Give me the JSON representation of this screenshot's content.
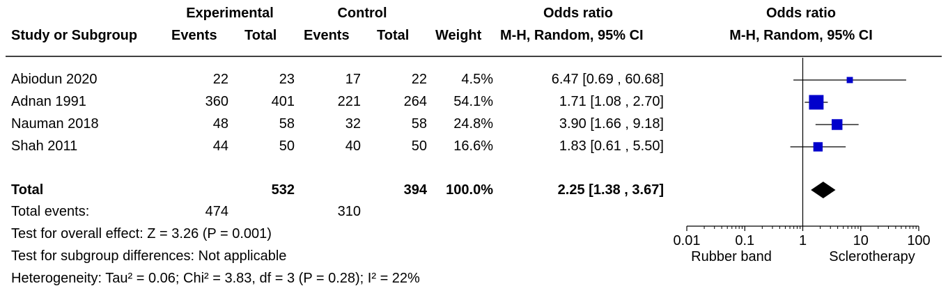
{
  "header": {
    "group1": "Experimental",
    "group2": "Control",
    "or_top": "Odds ratio",
    "or_sub": "M-H, Random, 95% CI",
    "plot_top": "Odds ratio",
    "plot_sub": "M-H, Random, 95% CI",
    "study": "Study or Subgroup",
    "events1": "Events",
    "total1": "Total",
    "events2": "Events",
    "total2": "Total",
    "weight": "Weight"
  },
  "rows": [
    {
      "study": "Abiodun 2020",
      "e1": "22",
      "t1": "23",
      "e2": "17",
      "t2": "22",
      "weight": "4.5%",
      "ci": "6.47 [0.69 , 60.68]"
    },
    {
      "study": "Adnan 1991",
      "e1": "360",
      "t1": "401",
      "e2": "221",
      "t2": "264",
      "weight": "54.1%",
      "ci": "1.71 [1.08 , 2.70]"
    },
    {
      "study": "Nauman 2018",
      "e1": "48",
      "t1": "58",
      "e2": "32",
      "t2": "58",
      "weight": "24.8%",
      "ci": "3.90 [1.66 , 9.18]"
    },
    {
      "study": "Shah 2011",
      "e1": "44",
      "t1": "50",
      "e2": "40",
      "t2": "50",
      "weight": "16.6%",
      "ci": "1.83 [0.61 , 5.50]"
    }
  ],
  "total": {
    "label": "Total",
    "t1": "532",
    "t2": "394",
    "weight": "100.0%",
    "ci": "2.25 [1.38 , 3.67]"
  },
  "total_events": {
    "label": "Total events:",
    "e1": "474",
    "e2": "310"
  },
  "footer": {
    "overall": "Test for overall effect: Z = 3.26 (P = 0.001)",
    "subgroup": "Test for subgroup differences: Not applicable",
    "heterogeneity": "Heterogeneity: Tau² = 0.06; Chi² = 3.83, df = 3 (P = 0.28); I² = 22%"
  },
  "chart_data": {
    "type": "forest",
    "x_scale": "log",
    "xlim": [
      0.01,
      100
    ],
    "ticks": [
      0.01,
      0.1,
      1,
      10,
      100
    ],
    "tick_labels": [
      "0.01",
      "0.1",
      "1",
      "10",
      "100"
    ],
    "left_label": "Rubber band",
    "right_label": "Sclerotherapy",
    "marker_color": "#0000cc",
    "studies": [
      {
        "or": 6.47,
        "lo": 0.69,
        "hi": 60.68,
        "weight": 4.5
      },
      {
        "or": 1.71,
        "lo": 1.08,
        "hi": 2.7,
        "weight": 54.1
      },
      {
        "or": 3.9,
        "lo": 1.66,
        "hi": 9.18,
        "weight": 24.8
      },
      {
        "or": 1.83,
        "lo": 0.61,
        "hi": 5.5,
        "weight": 16.6
      }
    ],
    "pooled": {
      "or": 2.25,
      "lo": 1.38,
      "hi": 3.67
    }
  }
}
